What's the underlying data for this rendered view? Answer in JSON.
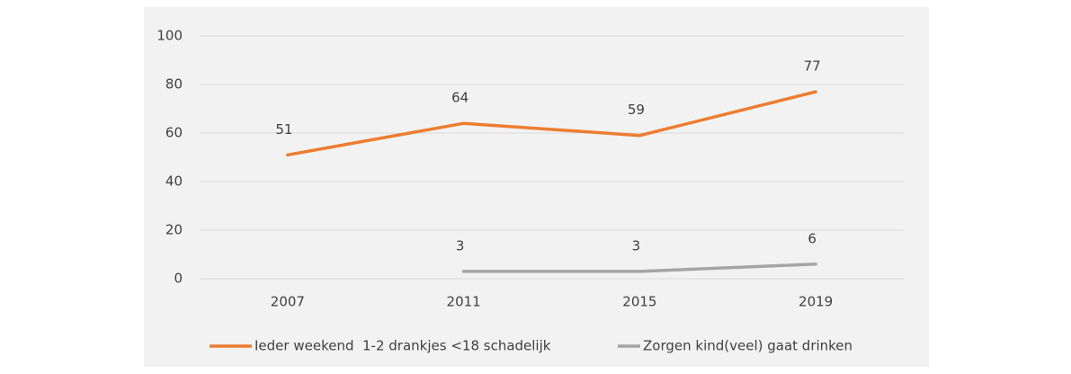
{
  "chart_data": {
    "type": "line",
    "categories": [
      "2007",
      "2011",
      "2015",
      "2019"
    ],
    "series": [
      {
        "name": "Ieder weekend  1-2 drankjes <18 schadelijk",
        "color": "#ed7d31",
        "values": [
          51,
          64,
          59,
          77
        ]
      },
      {
        "name": "Zorgen kind(veel) gaat drinken",
        "color": "#a5a5a5",
        "values": [
          null,
          3,
          3,
          6
        ]
      }
    ],
    "ylim": [
      0,
      100
    ],
    "yticks": [
      0,
      20,
      40,
      60,
      80,
      100
    ],
    "grid": true,
    "legend": "bottom"
  }
}
